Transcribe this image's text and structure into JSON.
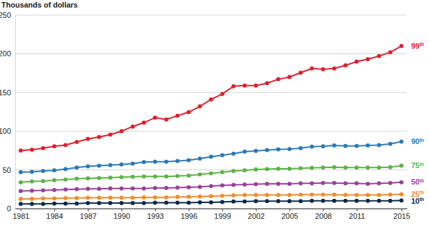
{
  "chart_data": {
    "type": "line",
    "y_label": "Thousands of dollars",
    "x": [
      1981,
      1982,
      1983,
      1984,
      1985,
      1986,
      1987,
      1988,
      1989,
      1990,
      1991,
      1992,
      1993,
      1994,
      1995,
      1996,
      1997,
      1998,
      1999,
      2000,
      2001,
      2002,
      2003,
      2004,
      2005,
      2006,
      2007,
      2008,
      2009,
      2010,
      2011,
      2012,
      2013,
      2014,
      2015
    ],
    "xlim": [
      1980.5,
      2015.5
    ],
    "xticks": [
      1981,
      1984,
      1987,
      1990,
      1993,
      1996,
      1999,
      2002,
      2005,
      2008,
      2011,
      2015
    ],
    "ylim": [
      0,
      250
    ],
    "yticks": [
      0,
      50,
      100,
      150,
      200,
      250
    ],
    "grid": true,
    "marker": "circle",
    "series": [
      {
        "name": "99th",
        "color": "#e0202e",
        "values": [
          75,
          76,
          78,
          80.5,
          82,
          86,
          90,
          92.5,
          95.5,
          100,
          106,
          111,
          117.5,
          115,
          120,
          124.5,
          132,
          141,
          148,
          158,
          159,
          159,
          162,
          167,
          170,
          175.5,
          181,
          180,
          181,
          185,
          190,
          193,
          197,
          202,
          210
        ]
      },
      {
        "name": "90th",
        "color": "#2a7ab9",
        "values": [
          47,
          47.5,
          48.5,
          49.5,
          51,
          53,
          54.5,
          55.5,
          56,
          57,
          58,
          60,
          60.5,
          60.5,
          61.5,
          62.5,
          64.5,
          67,
          69,
          71,
          73.5,
          74.5,
          75.5,
          76.5,
          77,
          78,
          80,
          80.5,
          81.5,
          81,
          81,
          81.5,
          82,
          83.5,
          86.5
        ]
      },
      {
        "name": "75th",
        "color": "#5bb446",
        "values": [
          34,
          35,
          35.5,
          36.5,
          37.5,
          38.5,
          39,
          39.5,
          40,
          40.5,
          41,
          41.5,
          41.5,
          41.5,
          42,
          42.5,
          44,
          45.5,
          47,
          48.5,
          49.5,
          50.5,
          51,
          51.5,
          51.5,
          52,
          52.5,
          53,
          53.5,
          53,
          53,
          53,
          53,
          53.5,
          55.5
        ]
      },
      {
        "name": "50th",
        "color": "#9b3f9b",
        "values": [
          22.5,
          23,
          23.5,
          24,
          24.5,
          25,
          25.5,
          25.5,
          26,
          26,
          26,
          26,
          26.5,
          26.5,
          27,
          27.5,
          28,
          29,
          30,
          30.5,
          31,
          31.5,
          32,
          32,
          32,
          32.5,
          32.5,
          33,
          33,
          32.5,
          32.5,
          32,
          32.5,
          33,
          34
        ]
      },
      {
        "name": "25th",
        "color": "#f28c28",
        "values": [
          12.5,
          12.5,
          13,
          13,
          13.5,
          13.5,
          14,
          14,
          14,
          14,
          14,
          14.5,
          14.5,
          14.5,
          15,
          15,
          15.5,
          16,
          16.5,
          17,
          17.5,
          17.5,
          17.5,
          17.5,
          17.5,
          18,
          18,
          18,
          18,
          17.5,
          17.5,
          17.5,
          17.5,
          18,
          18.5
        ]
      },
      {
        "name": "10th",
        "color": "#0c2a4a",
        "values": [
          6,
          6,
          6,
          6.5,
          6.5,
          6.5,
          7,
          7,
          7,
          7,
          7,
          7,
          7.5,
          7.5,
          7.5,
          7.5,
          8,
          8,
          8.5,
          9,
          9,
          9.5,
          9.5,
          9.5,
          9.5,
          9.5,
          10,
          10,
          10,
          10,
          10,
          10,
          10,
          10,
          10.5
        ]
      }
    ]
  }
}
